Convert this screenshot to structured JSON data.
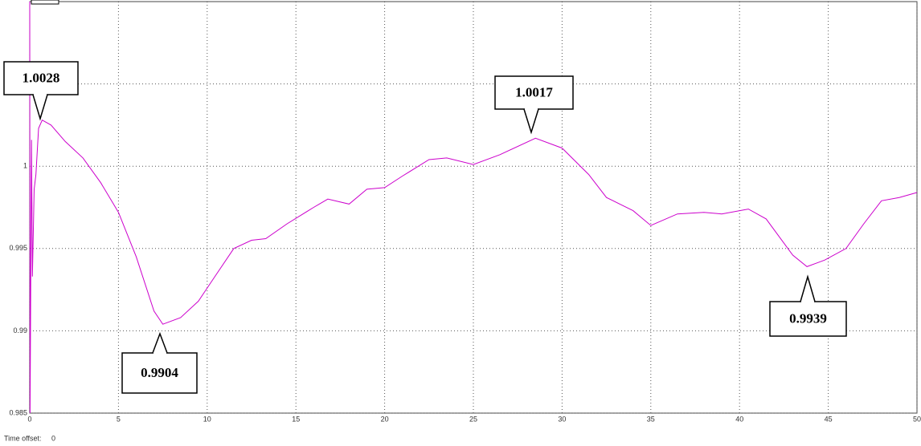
{
  "chart_data": {
    "type": "line",
    "x": [
      0,
      0.02,
      0.1,
      0.15,
      0.25,
      0.35,
      0.5,
      0.7,
      1.2,
      2,
      3,
      4,
      5,
      6,
      7,
      7.5,
      8.5,
      9.5,
      10.5,
      11.5,
      12.5,
      13.3,
      14.5,
      16,
      16.8,
      18,
      19,
      20,
      21,
      22.5,
      23.5,
      25,
      26.5,
      28.5,
      30,
      31.5,
      32.5,
      34,
      35,
      36.5,
      38,
      39,
      40.5,
      41.5,
      43,
      43.8,
      44.8,
      46,
      47,
      48,
      49,
      50
    ],
    "series": [
      {
        "color": "#cc00cc",
        "values": [
          1.01,
          0.985,
          1.0016,
          0.9933,
          0.9986,
          0.9995,
          1.0023,
          1.0028,
          1.0025,
          1.0015,
          1.0005,
          0.999,
          0.9972,
          0.9945,
          0.9912,
          0.9904,
          0.9908,
          0.9918,
          0.9934,
          0.995,
          0.9955,
          0.9956,
          0.9965,
          0.9975,
          0.998,
          0.9977,
          0.9986,
          0.9987,
          0.9994,
          1.0004,
          1.0005,
          1.0001,
          1.0007,
          1.0017,
          1.0011,
          0.9995,
          0.9981,
          0.9973,
          0.9964,
          0.9971,
          0.9972,
          0.9971,
          0.9974,
          0.9968,
          0.9946,
          0.9939,
          0.9943,
          0.995,
          0.9965,
          0.9979,
          0.9981,
          0.9984
        ]
      }
    ],
    "xlim": [
      0,
      50
    ],
    "xticks": [
      0,
      5,
      10,
      15,
      20,
      25,
      30,
      35,
      40,
      45,
      50
    ],
    "ylim": [
      0.985,
      1.01
    ],
    "yticks": [
      0.985,
      0.99,
      0.995,
      1,
      1.005
    ],
    "grid": true,
    "annotations": [
      "1.0028",
      "1.0017",
      "0.9904",
      "0.9939"
    ],
    "time_offset_label": "Time offset:",
    "time_offset": 0
  }
}
